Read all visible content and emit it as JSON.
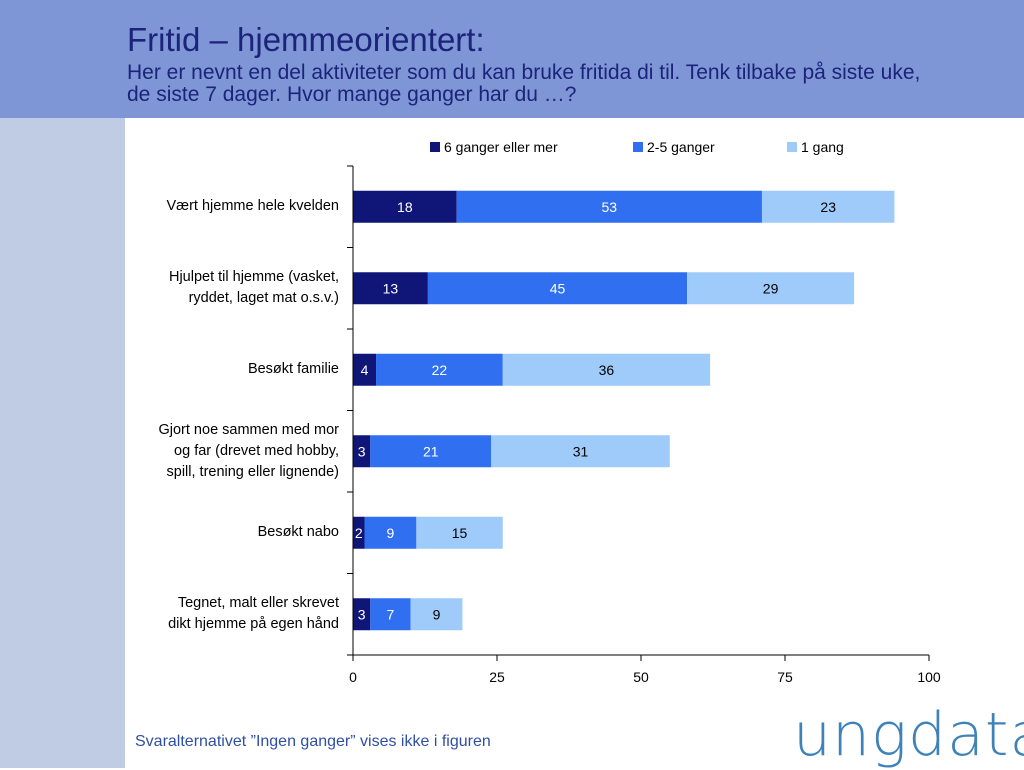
{
  "header": {
    "title": "Fritid – hjemmeorientert:",
    "subtitle": "Her er nevnt en del aktiviteter som du kan bruke fritida di til. Tenk tilbake på siste uke, de siste 7 dager. Hvor mange ganger har du …?"
  },
  "footnote": "Svaralternativet ”Ingen ganger” vises ikke i figuren",
  "logo": "ungdata",
  "chart_data": {
    "type": "bar",
    "orientation": "horizontal",
    "stacked": true,
    "title": "",
    "xlabel": "",
    "ylabel": "",
    "xlim": [
      0,
      100
    ],
    "xticks": [
      0,
      25,
      50,
      75,
      100
    ],
    "grid": false,
    "legend": "top",
    "categories": [
      "Vært hjemme hele kvelden",
      "Hjulpet til hjemme (vasket, ryddet, laget mat o.s.v.)",
      "Besøkt familie",
      "Gjort noe sammen med mor og far (drevet med hobby, spill, trening eller lignende)",
      "Besøkt nabo",
      "Tegnet, malt eller skrevet dikt hjemme på egen hånd"
    ],
    "category_lines": [
      [
        "Vært hjemme hele kvelden"
      ],
      [
        "Hjulpet til hjemme (vasket,",
        "ryddet, laget mat o.s.v.)"
      ],
      [
        "Besøkt familie"
      ],
      [
        "Gjort noe sammen med mor",
        "og far (drevet med hobby,",
        "spill, trening eller lignende)"
      ],
      [
        "Besøkt nabo"
      ],
      [
        "Tegnet, malt eller skrevet",
        "dikt hjemme på egen hånd"
      ]
    ],
    "series": [
      {
        "name": "6 ganger eller mer",
        "color": "#0f1678",
        "label_color": "#ffffff",
        "values": [
          18,
          13,
          4,
          3,
          2,
          3
        ]
      },
      {
        "name": "2-5 ganger",
        "color": "#2f6ff0",
        "label_color": "#ffffff",
        "values": [
          53,
          45,
          22,
          21,
          9,
          7
        ]
      },
      {
        "name": "1 gang",
        "color": "#9fcbfb",
        "label_color": "#000000",
        "values": [
          23,
          29,
          36,
          31,
          15,
          9
        ]
      }
    ]
  }
}
